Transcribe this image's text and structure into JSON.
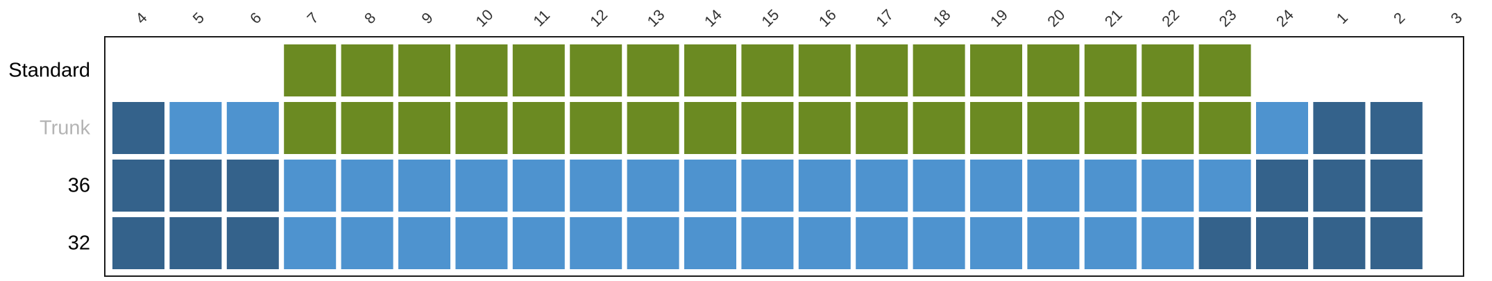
{
  "colors": {
    "green": "#6b8a22",
    "light_blue": "#4e93cf",
    "dark_blue": "#34628b",
    "row_label_default": "#000000",
    "row_label_muted": "#b4b4b4"
  },
  "chart_data": {
    "type": "heatmap",
    "title": "",
    "xlabel": "",
    "ylabel": "",
    "columns": [
      "4",
      "5",
      "6",
      "7",
      "8",
      "9",
      "10",
      "11",
      "12",
      "13",
      "14",
      "15",
      "16",
      "17",
      "18",
      "19",
      "20",
      "21",
      "22",
      "23",
      "24",
      "1",
      "2",
      "3"
    ],
    "rows": [
      {
        "label": "Standard",
        "muted": false,
        "cells": [
          null,
          null,
          null,
          "green",
          "green",
          "green",
          "green",
          "green",
          "green",
          "green",
          "green",
          "green",
          "green",
          "green",
          "green",
          "green",
          "green",
          "green",
          "green",
          "green",
          null,
          null,
          null,
          null
        ]
      },
      {
        "label": "Trunk",
        "muted": true,
        "cells": [
          "dark_blue",
          "light_blue",
          "light_blue",
          "green",
          "green",
          "green",
          "green",
          "green",
          "green",
          "green",
          "green",
          "green",
          "green",
          "green",
          "green",
          "green",
          "green",
          "green",
          "green",
          "green",
          "light_blue",
          "dark_blue",
          "dark_blue",
          null
        ]
      },
      {
        "label": "36",
        "muted": false,
        "cells": [
          "dark_blue",
          "dark_blue",
          "dark_blue",
          "light_blue",
          "light_blue",
          "light_blue",
          "light_blue",
          "light_blue",
          "light_blue",
          "light_blue",
          "light_blue",
          "light_blue",
          "light_blue",
          "light_blue",
          "light_blue",
          "light_blue",
          "light_blue",
          "light_blue",
          "light_blue",
          "light_blue",
          "dark_blue",
          "dark_blue",
          "dark_blue",
          null
        ]
      },
      {
        "label": "32",
        "muted": false,
        "cells": [
          "dark_blue",
          "dark_blue",
          "dark_blue",
          "light_blue",
          "light_blue",
          "light_blue",
          "light_blue",
          "light_blue",
          "light_blue",
          "light_blue",
          "light_blue",
          "light_blue",
          "light_blue",
          "light_blue",
          "light_blue",
          "light_blue",
          "light_blue",
          "light_blue",
          "light_blue",
          "dark_blue",
          "dark_blue",
          "dark_blue",
          "dark_blue",
          null
        ]
      }
    ]
  }
}
